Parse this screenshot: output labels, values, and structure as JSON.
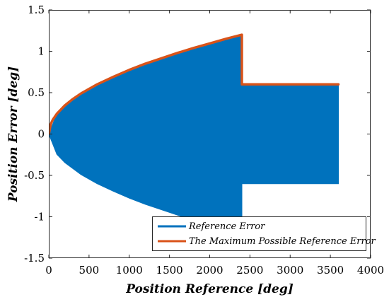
{
  "chart_data": {
    "type": "area",
    "title": "",
    "xlabel": "Position Reference [deg]",
    "ylabel": "Position Error [deg]",
    "xlim": [
      0,
      4000
    ],
    "ylim": [
      -1.5,
      1.5
    ],
    "xticks": [
      0,
      500,
      1000,
      1500,
      2000,
      2500,
      3000,
      3500,
      4000
    ],
    "yticks": [
      -1.5,
      -1,
      -0.5,
      0,
      0.5,
      1,
      1.5
    ],
    "xtick_labels": [
      "0",
      "500",
      "1000",
      "1500",
      "2000",
      "2500",
      "3000",
      "3500",
      "4000"
    ],
    "ytick_labels": [
      "-1.5",
      "-1",
      "-0.5",
      "0",
      "0.5",
      "1",
      "1.5"
    ],
    "grid": false,
    "legend_position": "bottom-right",
    "series": [
      {
        "name": "Reference Error",
        "color": "#0072BD",
        "style": "filled oscillation band",
        "upper_x": [
          0,
          100,
          200,
          400,
          600,
          800,
          1000,
          1200,
          1400,
          1600,
          1800,
          2000,
          2200,
          2400,
          2400,
          3600
        ],
        "upper_y": [
          0,
          0.245,
          0.346,
          0.49,
          0.6,
          0.69,
          0.775,
          0.85,
          0.915,
          0.98,
          1.04,
          1.095,
          1.15,
          1.2,
          0.6,
          0.6
        ],
        "lower_x": [
          0,
          100,
          200,
          400,
          600,
          800,
          1000,
          1200,
          1400,
          1600,
          1800,
          2000,
          2200,
          2400,
          2400,
          3600
        ],
        "lower_y": [
          0,
          -0.245,
          -0.346,
          -0.49,
          -0.6,
          -0.69,
          -0.775,
          -0.85,
          -0.915,
          -0.98,
          -1.04,
          -1.095,
          -1.15,
          -1.2,
          -0.6,
          -0.6
        ]
      },
      {
        "name": "The Maximum Possible Reference Error",
        "color": "#D95319",
        "style": "line",
        "x": [
          0,
          25,
          50,
          100,
          200,
          300,
          400,
          600,
          800,
          1000,
          1200,
          1400,
          1600,
          1800,
          2000,
          2200,
          2400,
          2400,
          3600
        ],
        "y": [
          0,
          0.122,
          0.173,
          0.245,
          0.346,
          0.424,
          0.49,
          0.6,
          0.69,
          0.775,
          0.85,
          0.915,
          0.98,
          1.04,
          1.095,
          1.15,
          1.2,
          0.6,
          0.6
        ]
      }
    ]
  }
}
